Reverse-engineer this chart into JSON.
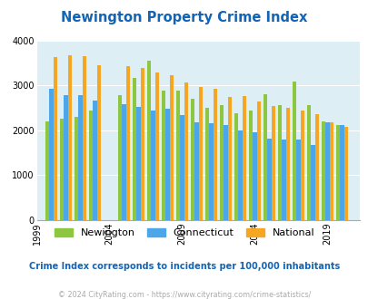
{
  "title": "Newington Property Crime Index",
  "subtitle": "Crime Index corresponds to incidents per 100,000 inhabitants",
  "footer": "© 2024 CityRating.com - https://www.cityrating.com/crime-statistics/",
  "years": [
    2000,
    2001,
    2002,
    2003,
    2005,
    2006,
    2007,
    2008,
    2009,
    2010,
    2011,
    2012,
    2013,
    2014,
    2015,
    2016,
    2017,
    2018,
    2019,
    2020
  ],
  "newington": [
    2200,
    2250,
    2300,
    2430,
    2780,
    3160,
    3550,
    2880,
    2870,
    2690,
    2490,
    2550,
    2380,
    2440,
    2800,
    2560,
    3080,
    2560,
    2200,
    2120
  ],
  "connecticut": [
    2920,
    2770,
    2780,
    2660,
    2570,
    2510,
    2430,
    2480,
    2340,
    2170,
    2160,
    2120,
    2000,
    1960,
    1810,
    1790,
    1790,
    1660,
    2170,
    2110
  ],
  "national": [
    3620,
    3670,
    3650,
    3440,
    3420,
    3380,
    3280,
    3230,
    3060,
    2960,
    2930,
    2730,
    2760,
    2630,
    2530,
    2490,
    2440,
    2360,
    2170,
    2080
  ],
  "color_newington": "#8dc63f",
  "color_connecticut": "#4da6e8",
  "color_national": "#f5a623",
  "color_title": "#1464b4",
  "color_subtitle": "#1464b4",
  "color_footer": "#aaaaaa",
  "bg_color": "#ddeef5",
  "ylim": [
    0,
    4000
  ],
  "yticks": [
    0,
    1000,
    2000,
    3000,
    4000
  ],
  "xtick_years": [
    1999,
    2004,
    2009,
    2014,
    2019
  ],
  "xtick_labels": [
    "1999",
    "2004",
    "2009",
    "2014",
    "2019"
  ]
}
